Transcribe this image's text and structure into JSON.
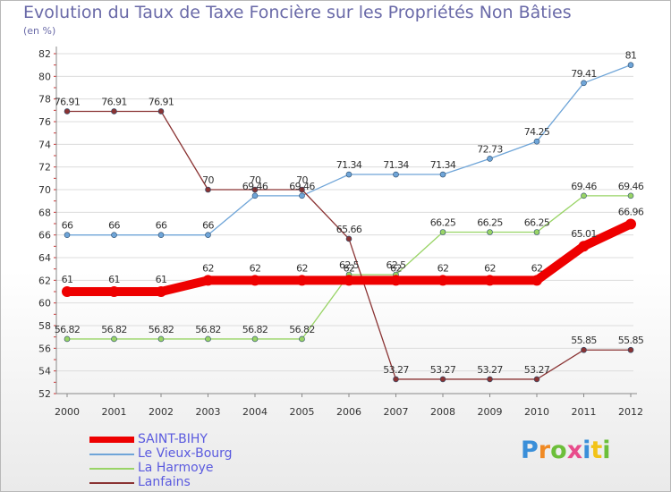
{
  "chart_data": {
    "type": "line",
    "title": "Evolution du Taux de Taxe Foncière sur les Propriétés Non Bâties",
    "ylabel": "(en %)",
    "xlabel": "",
    "categories": [
      "2000",
      "2001",
      "2002",
      "2003",
      "2004",
      "2005",
      "2006",
      "2007",
      "2008",
      "2009",
      "2010",
      "2011",
      "2012"
    ],
    "ylim": [
      52,
      82
    ],
    "yticks": [
      52,
      54,
      56,
      58,
      60,
      62,
      64,
      66,
      68,
      70,
      72,
      74,
      76,
      78,
      80,
      82
    ],
    "grid": "horizontal",
    "legend_position": "bottom-left",
    "series": [
      {
        "name": "SAINT-BIHY",
        "color": "#ee0000",
        "values": [
          61,
          61,
          61,
          62,
          62,
          62,
          62,
          62,
          62,
          62,
          62,
          65.01,
          66.96
        ],
        "labels": [
          "61",
          "61",
          "61",
          "62",
          "62",
          "62",
          "62",
          "62",
          "62",
          "62",
          "62",
          "65.01",
          "66.96"
        ]
      },
      {
        "name": "Le Vieux-Bourg",
        "color": "#6fa5d8",
        "values": [
          66,
          66,
          66,
          66,
          69.46,
          69.46,
          71.34,
          71.34,
          71.34,
          72.73,
          74.25,
          79.41,
          81
        ],
        "labels": [
          "66",
          "66",
          "66",
          "66",
          "69.46",
          "69.46",
          "71.34",
          "71.34",
          "71.34",
          "72.73",
          "74.25",
          "79.41",
          "81"
        ]
      },
      {
        "name": "La Harmoye",
        "color": "#99d466",
        "values": [
          56.82,
          56.82,
          56.82,
          56.82,
          56.82,
          56.82,
          62.5,
          62.5,
          66.25,
          66.25,
          66.25,
          69.46,
          69.46
        ],
        "labels": [
          "56.82",
          "56.82",
          "56.82",
          "56.82",
          "56.82",
          "56.82",
          "62.5",
          "62.5",
          "66.25",
          "66.25",
          "66.25",
          "69.46",
          "69.46"
        ]
      },
      {
        "name": "Lanfains",
        "color": "#8a3333",
        "values": [
          76.91,
          76.91,
          76.91,
          70,
          70,
          70,
          65.66,
          53.27,
          53.27,
          53.27,
          53.27,
          55.85,
          55.85
        ],
        "labels": [
          "76.91",
          "76.91",
          "76.91",
          "70",
          "70",
          "70",
          "65.66",
          "53.27",
          "53.27",
          "53.27",
          "53.27",
          "55.85",
          "55.85"
        ]
      }
    ]
  },
  "logo": {
    "letters": [
      "P",
      "r",
      "o",
      "x",
      "i",
      "t",
      "i"
    ],
    "colors": [
      "#3a8fd9",
      "#f08a24",
      "#6cbf3a",
      "#e84c8b",
      "#3a8fd9",
      "#f2c318",
      "#6cbf3a"
    ]
  }
}
